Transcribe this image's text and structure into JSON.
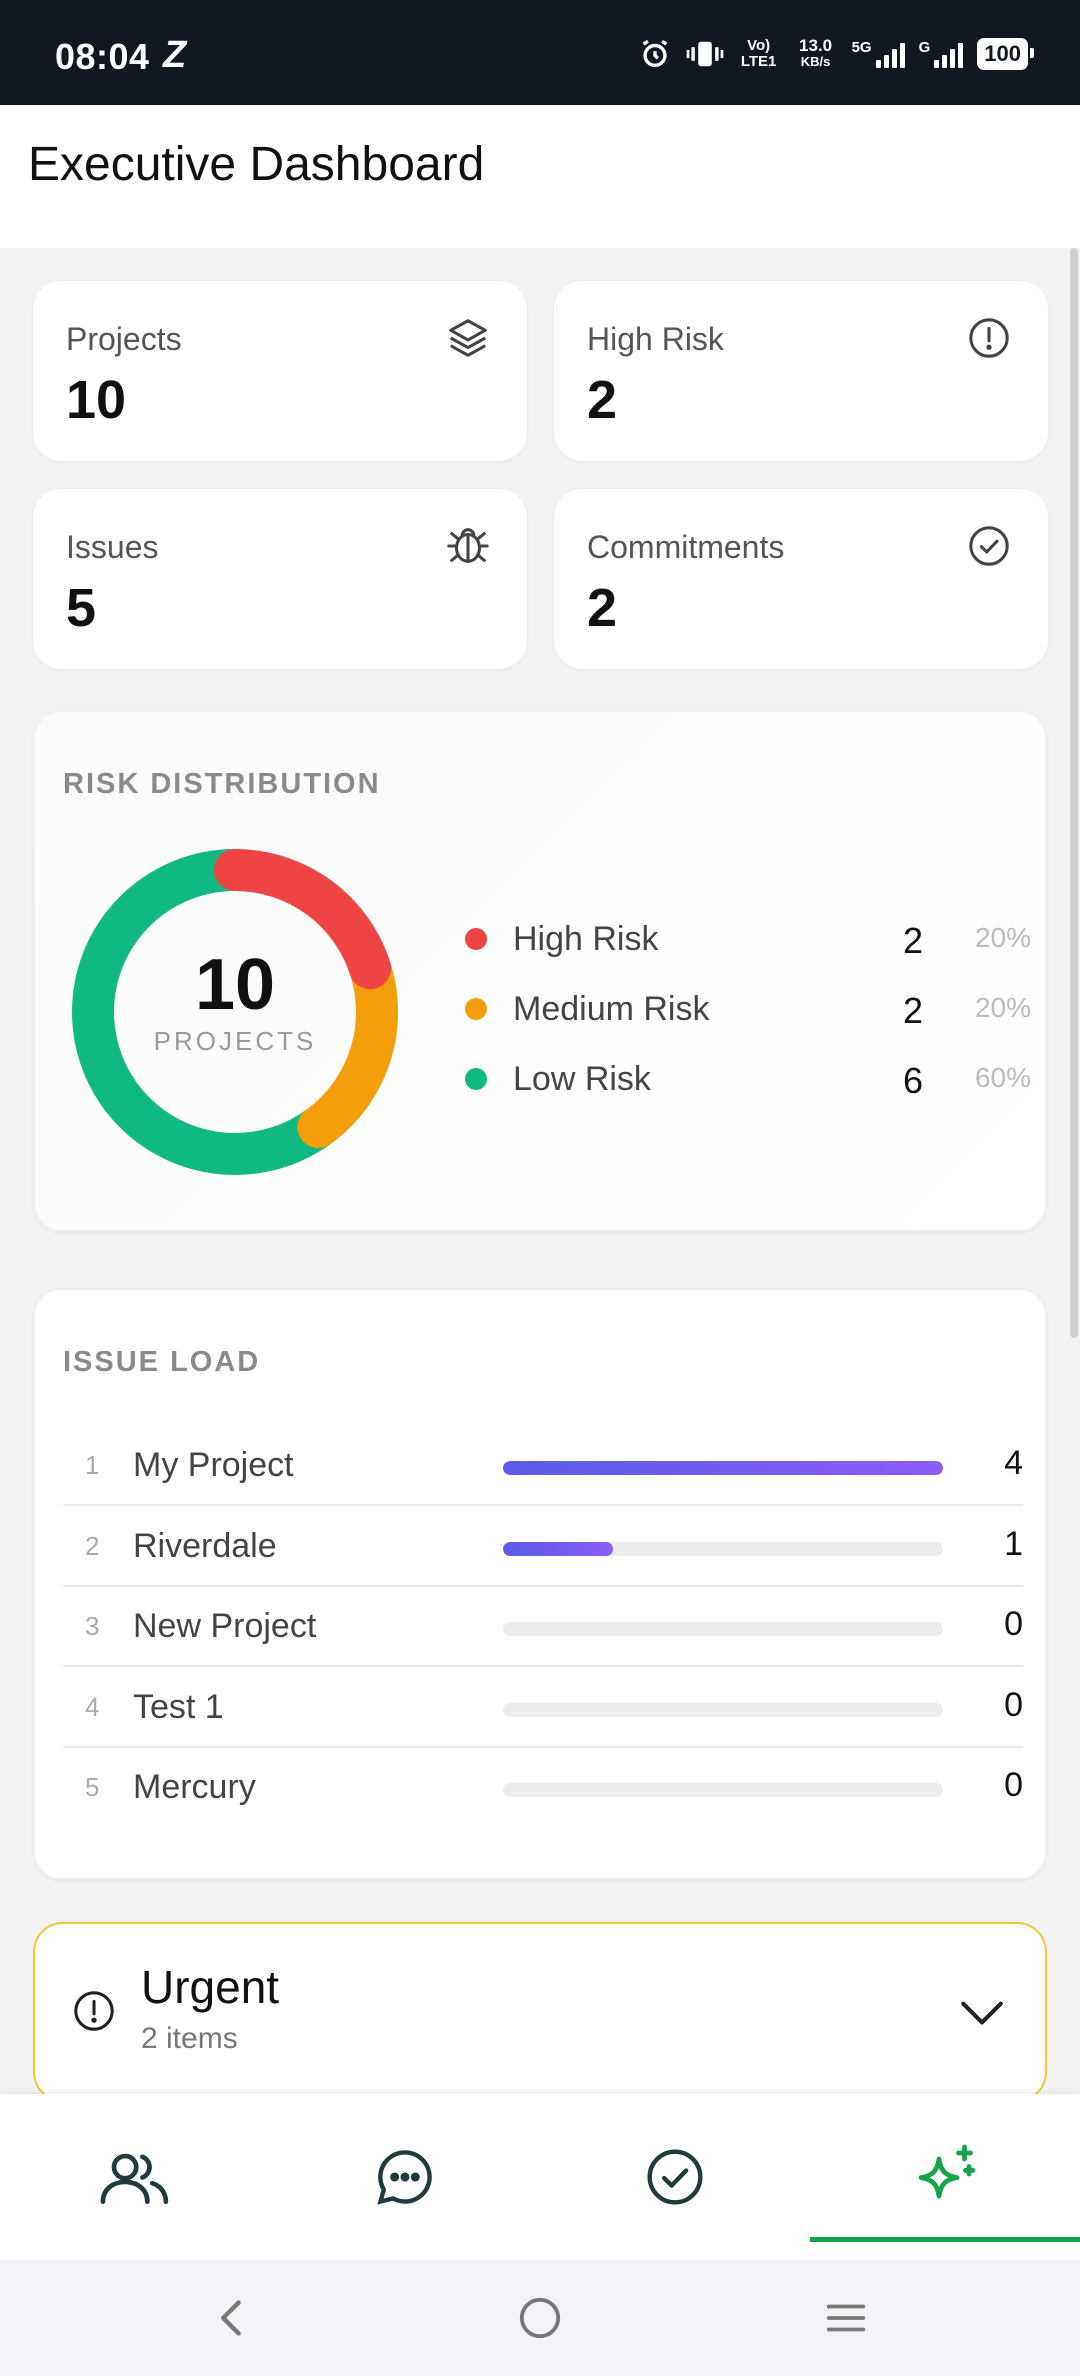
{
  "status_bar": {
    "time": "08:04",
    "carrier_glyph": "Z",
    "volte": "Vo) LTE1",
    "speed_value": "13.0",
    "speed_unit": "KB/s",
    "network_5g": "5G",
    "network_g": "G",
    "battery": "100"
  },
  "header": {
    "title": "Executive Dashboard"
  },
  "stats": [
    {
      "label": "Projects",
      "value": "10",
      "icon": "layers-icon"
    },
    {
      "label": "High Risk",
      "value": "2",
      "icon": "alert-circle-icon"
    },
    {
      "label": "Issues",
      "value": "5",
      "icon": "bug-icon"
    },
    {
      "label": "Commitments",
      "value": "2",
      "icon": "check-circle-icon"
    }
  ],
  "risk": {
    "title": "RISK DISTRIBUTION",
    "center_value": "10",
    "center_label": "PROJECTS",
    "items": [
      {
        "name": "High Risk",
        "count": "2",
        "pct": "20%",
        "color": "#ef4444"
      },
      {
        "name": "Medium Risk",
        "count": "2",
        "pct": "20%",
        "color": "#f59e0b"
      },
      {
        "name": "Low Risk",
        "count": "6",
        "pct": "60%",
        "color": "#10b981"
      }
    ]
  },
  "chart_data": {
    "type": "pie",
    "categories": [
      "High Risk",
      "Medium Risk",
      "Low Risk"
    ],
    "values": [
      2,
      2,
      6
    ],
    "colors": [
      "#ef4444",
      "#f59e0b",
      "#10b981"
    ],
    "title": "RISK DISTRIBUTION",
    "legend": "right"
  },
  "issue_load": {
    "title": "ISSUE LOAD",
    "max": 4,
    "rows": [
      {
        "rank": "1",
        "name": "My Project",
        "count": "4",
        "value": 4
      },
      {
        "rank": "2",
        "name": "Riverdale",
        "count": "1",
        "value": 1
      },
      {
        "rank": "3",
        "name": "New Project",
        "count": "0",
        "value": 0
      },
      {
        "rank": "4",
        "name": "Test 1",
        "count": "0",
        "value": 0
      },
      {
        "rank": "5",
        "name": "Mercury",
        "count": "0",
        "value": 0
      }
    ]
  },
  "urgent": {
    "title": "Urgent",
    "subtitle": "2 items"
  },
  "bottom_nav": {
    "items": [
      "team-icon",
      "chat-icon",
      "tasks-icon",
      "sparkle-icon"
    ],
    "active_color": "#16a34a"
  }
}
